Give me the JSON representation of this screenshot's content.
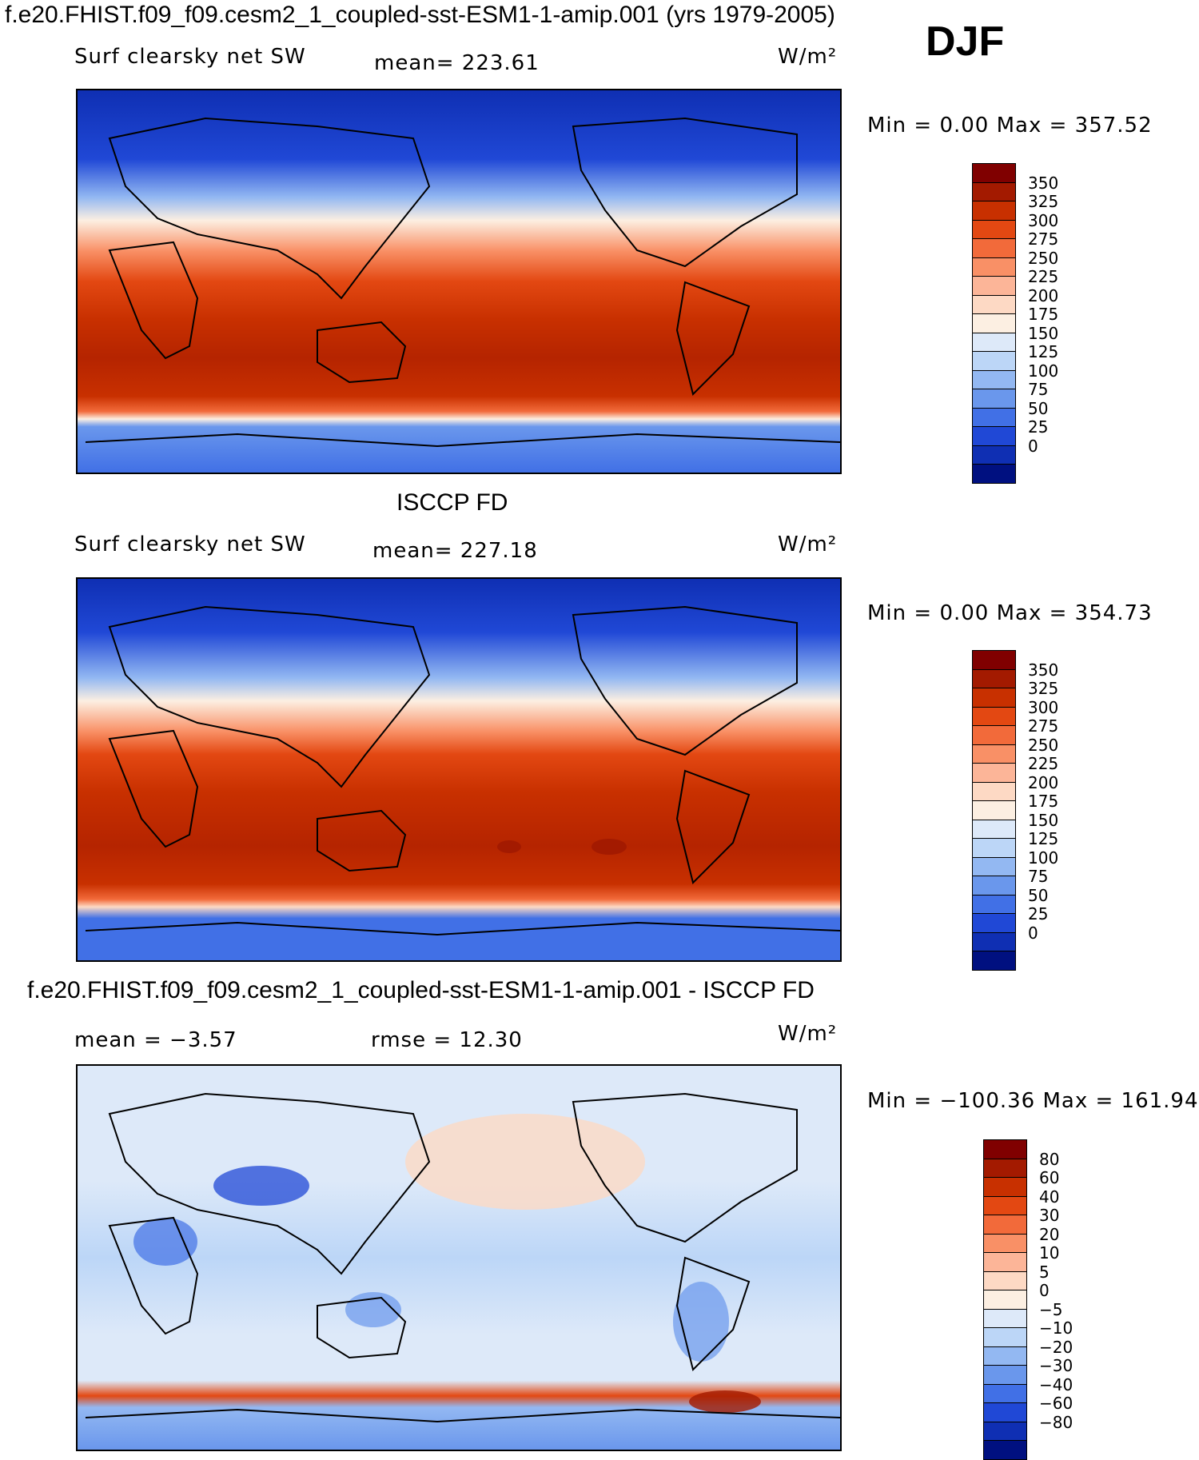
{
  "header": {
    "case_title": "f.e20.FHIST.f09_f09.cesm2_1_coupled-sst-ESM1-1-amip.001 (yrs 1979-2005)",
    "season": "DJF"
  },
  "panels": [
    {
      "title": "",
      "variable": "Surf clearsky net SW",
      "stat_text": "mean= 223.61",
      "units_text": "W/m²",
      "minmax_text": "Min =     0.00 Max = 357.52",
      "colorbar": {
        "ticks": [
          "350",
          "325",
          "300",
          "275",
          "250",
          "225",
          "200",
          "175",
          "150",
          "125",
          "100",
          "75",
          "50",
          "25",
          "0"
        ],
        "colors": [
          "#800000",
          "#a31a00",
          "#c83000",
          "#e34812",
          "#f26a3a",
          "#f99066",
          "#fcb598",
          "#fdd9c4",
          "#fcefe2",
          "#dde9f9",
          "#bcd6f7",
          "#93b8f2",
          "#6a97ec",
          "#4170e6",
          "#2048d6",
          "#0f2fb3",
          "#001080"
        ]
      }
    },
    {
      "title": "ISCCP FD",
      "variable": "Surf clearsky net SW",
      "stat_text": "mean= 227.18",
      "units_text": "W/m²",
      "minmax_text": "Min =     0.00 Max = 354.73",
      "colorbar": {
        "ticks": [
          "350",
          "325",
          "300",
          "275",
          "250",
          "225",
          "200",
          "175",
          "150",
          "125",
          "100",
          "75",
          "50",
          "25",
          "0"
        ],
        "colors": [
          "#800000",
          "#a31a00",
          "#c83000",
          "#e34812",
          "#f26a3a",
          "#f99066",
          "#fcb598",
          "#fdd9c4",
          "#fcefe2",
          "#dde9f9",
          "#bcd6f7",
          "#93b8f2",
          "#6a97ec",
          "#4170e6",
          "#2048d6",
          "#0f2fb3",
          "#001080"
        ]
      }
    },
    {
      "title": "f.e20.FHIST.f09_f09.cesm2_1_coupled-sst-ESM1-1-amip.001 - ISCCP FD",
      "variable": "",
      "stat_text": "mean =   −3.57",
      "stat2_text": "rmse =   12.30",
      "units_text": "W/m²",
      "minmax_text": "Min = −100.36 Max = 161.94",
      "colorbar": {
        "ticks": [
          "80",
          "60",
          "40",
          "30",
          "20",
          "10",
          "5",
          "0",
          "−5",
          "−10",
          "−20",
          "−30",
          "−40",
          "−60",
          "−80"
        ],
        "colors": [
          "#800000",
          "#a31a00",
          "#c83000",
          "#e34812",
          "#f26a3a",
          "#f99066",
          "#fcb598",
          "#fdd9c4",
          "#fcefe2",
          "#dde9f9",
          "#bcd6f7",
          "#93b8f2",
          "#6a97ec",
          "#4170e6",
          "#2048d6",
          "#0f2fb3",
          "#001080"
        ]
      }
    }
  ]
}
